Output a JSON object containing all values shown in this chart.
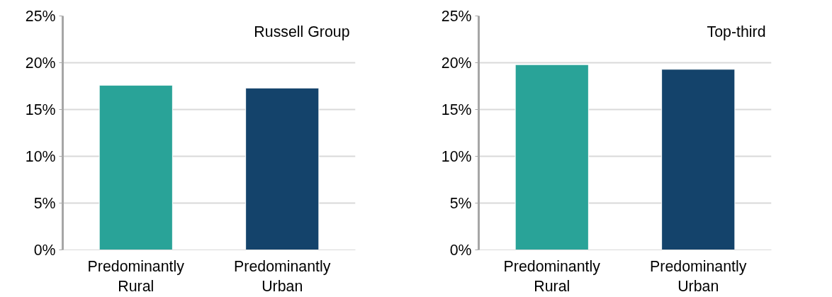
{
  "chart_data": [
    {
      "type": "bar",
      "title": "Russell Group",
      "categories": [
        "Predominantly Rural",
        "Predominantly Urban"
      ],
      "values": [
        17.6,
        17.3
      ],
      "colors": [
        "#29a398",
        "#14436b"
      ],
      "ylim": [
        0,
        25
      ],
      "yticks": [
        {
          "value": 0,
          "label": "0%"
        },
        {
          "value": 5,
          "label": "5%"
        },
        {
          "value": 10,
          "label": "10%"
        },
        {
          "value": 15,
          "label": "15%"
        },
        {
          "value": 20,
          "label": "20%"
        },
        {
          "value": 25,
          "label": "25%"
        }
      ],
      "grid": "y"
    },
    {
      "type": "bar",
      "title": "Top-third",
      "categories": [
        "Predominantly Rural",
        "Predominantly Urban"
      ],
      "values": [
        19.8,
        19.3
      ],
      "colors": [
        "#29a398",
        "#14436b"
      ],
      "ylim": [
        0,
        25
      ],
      "yticks": [
        {
          "value": 0,
          "label": "0%"
        },
        {
          "value": 5,
          "label": "5%"
        },
        {
          "value": 10,
          "label": "10%"
        },
        {
          "value": 15,
          "label": "15%"
        },
        {
          "value": 20,
          "label": "20%"
        },
        {
          "value": 25,
          "label": "25%"
        }
      ],
      "grid": "y"
    }
  ]
}
